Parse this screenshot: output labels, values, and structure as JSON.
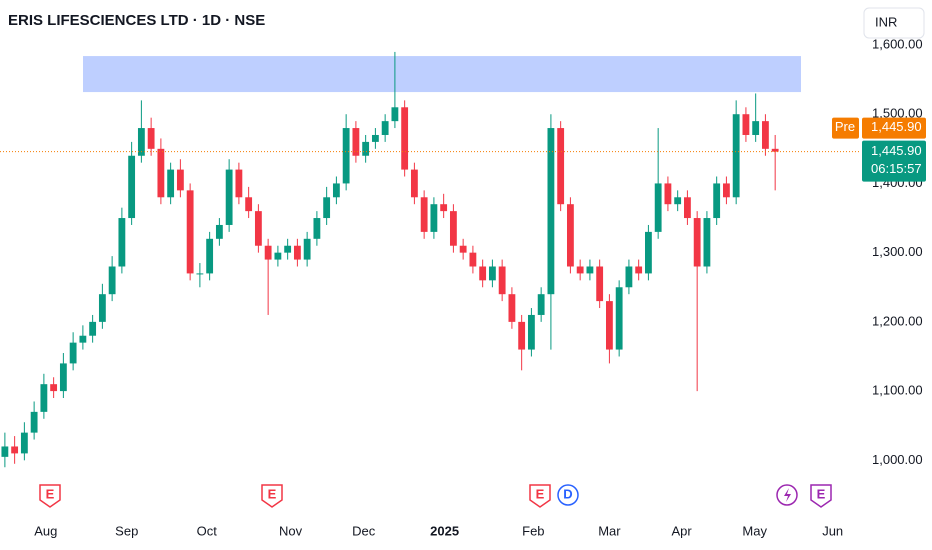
{
  "chart_data": {
    "type": "candlestick",
    "title": "ERIS LIFESCIENCES LTD · 1D · NSE",
    "currency": "INR",
    "up_color": "#089981",
    "down_color": "#f23645",
    "open": [
      1005,
      1020,
      1010,
      1040,
      1070,
      1110,
      1100,
      1140,
      1170,
      1180,
      1200,
      1240,
      1280,
      1350,
      1440,
      1480,
      1450,
      1380,
      1420,
      1390,
      1270,
      1270,
      1320,
      1340,
      1420,
      1380,
      1360,
      1310,
      1290,
      1300,
      1310,
      1290,
      1320,
      1350,
      1380,
      1400,
      1480,
      1440,
      1460,
      1470,
      1490,
      1510,
      1420,
      1380,
      1330,
      1370,
      1360,
      1310,
      1300,
      1280,
      1260,
      1280,
      1240,
      1200,
      1160,
      1210,
      1240,
      1480,
      1370,
      1280,
      1270,
      1280,
      1230,
      1160,
      1250,
      1280,
      1270,
      1330,
      1400,
      1370,
      1380,
      1350,
      1280,
      1350,
      1400,
      1380,
      1500,
      1470,
      1490,
      1450
    ],
    "high": [
      1040,
      1035,
      1055,
      1085,
      1125,
      1120,
      1155,
      1185,
      1195,
      1210,
      1255,
      1295,
      1365,
      1460,
      1520,
      1495,
      1465,
      1430,
      1435,
      1400,
      1285,
      1330,
      1350,
      1435,
      1430,
      1395,
      1370,
      1320,
      1310,
      1320,
      1320,
      1330,
      1360,
      1395,
      1410,
      1500,
      1490,
      1470,
      1480,
      1500,
      1590,
      1520,
      1430,
      1390,
      1380,
      1385,
      1370,
      1320,
      1310,
      1290,
      1290,
      1290,
      1250,
      1210,
      1220,
      1250,
      1500,
      1490,
      1380,
      1290,
      1290,
      1290,
      1240,
      1260,
      1290,
      1290,
      1340,
      1480,
      1410,
      1390,
      1390,
      1360,
      1360,
      1410,
      1410,
      1520,
      1510,
      1530,
      1500,
      1470
    ],
    "low": [
      990,
      995,
      1000,
      1030,
      1060,
      1090,
      1090,
      1130,
      1160,
      1170,
      1190,
      1230,
      1270,
      1340,
      1430,
      1440,
      1370,
      1370,
      1380,
      1260,
      1250,
      1260,
      1310,
      1330,
      1370,
      1350,
      1300,
      1210,
      1280,
      1290,
      1280,
      1280,
      1310,
      1340,
      1370,
      1390,
      1430,
      1430,
      1450,
      1460,
      1480,
      1410,
      1370,
      1320,
      1320,
      1350,
      1300,
      1290,
      1270,
      1250,
      1250,
      1230,
      1190,
      1130,
      1150,
      1200,
      1160,
      1360,
      1270,
      1260,
      1260,
      1220,
      1140,
      1150,
      1240,
      1260,
      1260,
      1320,
      1360,
      1360,
      1340,
      1100,
      1270,
      1340,
      1370,
      1370,
      1460,
      1460,
      1440,
      1390
    ],
    "close": [
      1020,
      1010,
      1040,
      1070,
      1110,
      1100,
      1140,
      1170,
      1180,
      1200,
      1240,
      1280,
      1350,
      1440,
      1480,
      1450,
      1380,
      1420,
      1390,
      1270,
      1270,
      1320,
      1340,
      1420,
      1380,
      1360,
      1310,
      1290,
      1300,
      1310,
      1290,
      1320,
      1350,
      1380,
      1400,
      1480,
      1440,
      1460,
      1470,
      1490,
      1510,
      1420,
      1380,
      1330,
      1370,
      1360,
      1310,
      1300,
      1280,
      1260,
      1280,
      1240,
      1200,
      1160,
      1210,
      1240,
      1480,
      1370,
      1280,
      1270,
      1280,
      1230,
      1160,
      1250,
      1280,
      1270,
      1330,
      1400,
      1370,
      1380,
      1350,
      1280,
      1350,
      1400,
      1380,
      1500,
      1470,
      1490,
      1450,
      1445.9
    ],
    "xlim": [
      0,
      88.2
    ],
    "ylim": [
      921,
      1665
    ],
    "yticks": [
      {
        "value": 1000,
        "label": "1,000.00"
      },
      {
        "value": 1100,
        "label": "1,100.00"
      },
      {
        "value": 1200,
        "label": "1,200.00"
      },
      {
        "value": 1300,
        "label": "1,300.00"
      },
      {
        "value": 1400,
        "label": "1,400.00"
      },
      {
        "value": 1500,
        "label": "1,500.00"
      },
      {
        "value": 1600,
        "label": "1,600.00"
      }
    ],
    "xticks": [
      {
        "value": 4.7,
        "label": "Aug"
      },
      {
        "value": 13,
        "label": "Sep"
      },
      {
        "value": 21.2,
        "label": "Oct"
      },
      {
        "value": 29.8,
        "label": "Nov"
      },
      {
        "value": 37.3,
        "label": "Dec"
      },
      {
        "value": 45.6,
        "label": "2025"
      },
      {
        "value": 54.7,
        "label": "Feb"
      },
      {
        "value": 62.5,
        "label": "Mar"
      },
      {
        "value": 69.9,
        "label": "Apr"
      },
      {
        "value": 77.4,
        "label": "May"
      },
      {
        "value": 85.4,
        "label": "Jun"
      }
    ],
    "zone": {
      "from": 1532,
      "to": 1584,
      "color": "#bbccff"
    },
    "last_price": {
      "value": 1445.9,
      "label": "1,445.90",
      "countdown": "06:15:57"
    },
    "premarket": {
      "tag": "Pre",
      "label": "1,445.90"
    },
    "events": [
      "E",
      "E",
      "E",
      "D",
      "E"
    ]
  }
}
